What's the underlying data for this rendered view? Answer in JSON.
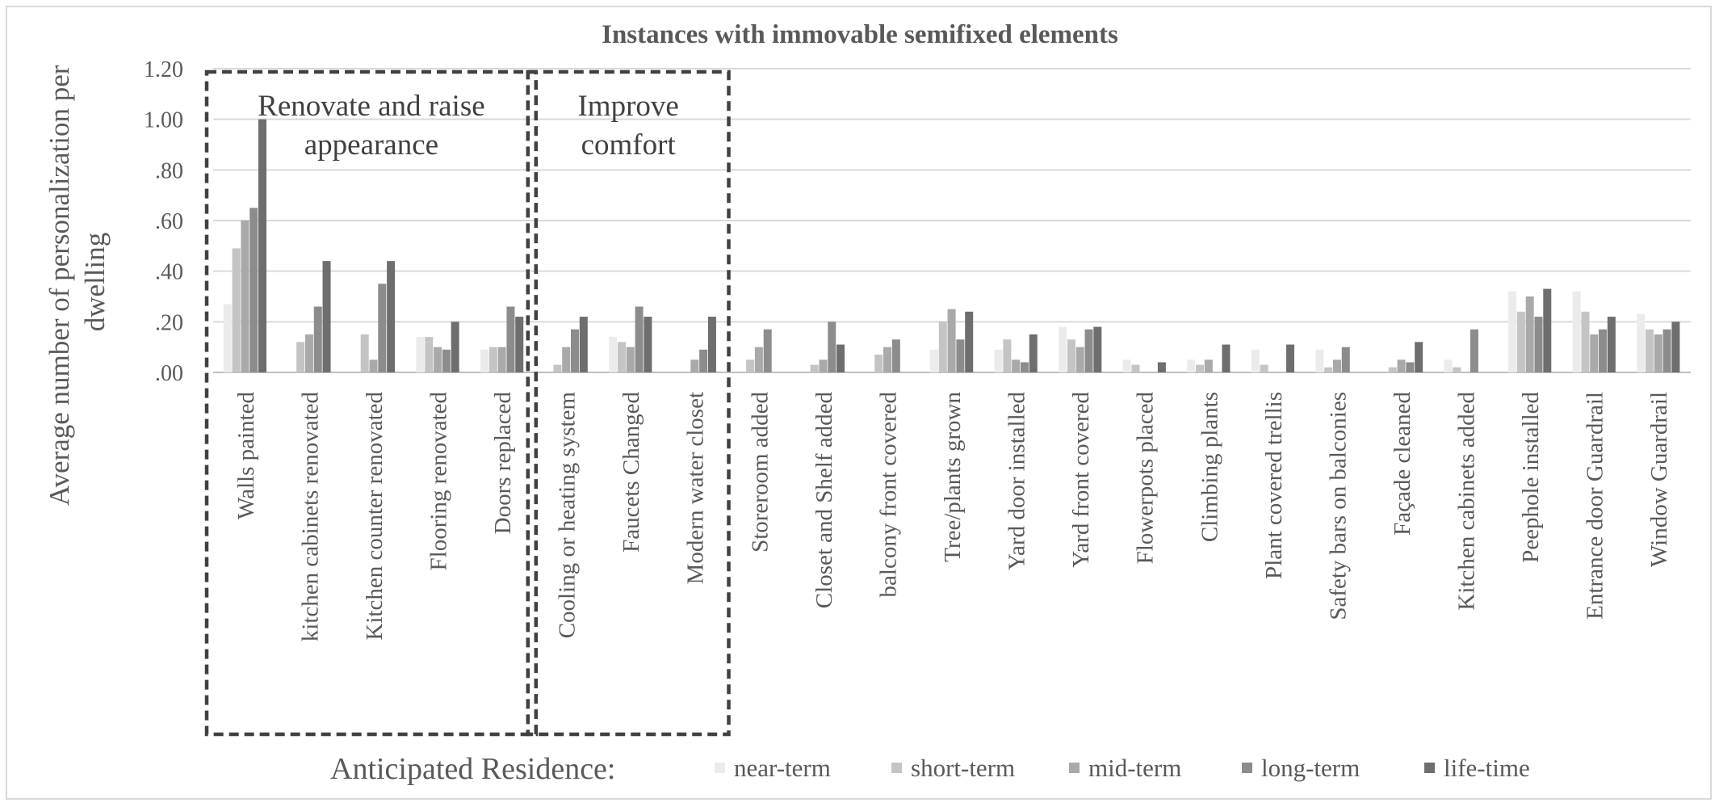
{
  "chart_data": {
    "type": "bar",
    "title": "Instances with immovable semifixed elements",
    "ylabel": "Average number of personalization per dwelling",
    "ylim": [
      0,
      1.2
    ],
    "yticks": [
      ".00",
      ".20",
      ".40",
      ".60",
      ".80",
      "1.00",
      "1.20"
    ],
    "grid": true,
    "categories": [
      "Walls painted",
      "kitchen cabinets renovated",
      "Kitchen counter renovated",
      "Flooring renovated",
      "Doors replaced",
      "Cooling or heating system",
      "Faucets Changed",
      "Modern water closet",
      "Storeroom added",
      "Closet and Shelf added",
      "balcony front covered",
      "Tree/plants grown",
      "Yard door installed",
      "Yard front covered",
      "Flowerpots placed",
      "Climbing plants",
      "Plant covered trellis",
      "Safety bars on balconies",
      "Façade cleaned",
      "Kitchen cabinets added",
      "Peephole installed",
      "Entrance door Guardrail",
      "Window Guardrail"
    ],
    "series": [
      {
        "name": "near-term",
        "color": "#ebebeb",
        "values": [
          0.27,
          0,
          0,
          0.14,
          0.09,
          0,
          0.14,
          0,
          0,
          0,
          0,
          0.09,
          0.09,
          0.18,
          0.05,
          0.05,
          0.09,
          0.09,
          0,
          0.05,
          0.32,
          0.32,
          0.23
        ]
      },
      {
        "name": "short-term",
        "color": "#c4c4c4",
        "values": [
          0.49,
          0.12,
          0.15,
          0.14,
          0.1,
          0.03,
          0.12,
          0,
          0.05,
          0.03,
          0.07,
          0.2,
          0.13,
          0.13,
          0.03,
          0.03,
          0.03,
          0.02,
          0.02,
          0.02,
          0.24,
          0.24,
          0.17
        ]
      },
      {
        "name": "mid-term",
        "color": "#a9a9a9",
        "values": [
          0.6,
          0.15,
          0.05,
          0.1,
          0.1,
          0.1,
          0.1,
          0.05,
          0.1,
          0.05,
          0.1,
          0.25,
          0.05,
          0.1,
          0,
          0.05,
          0,
          0.05,
          0.05,
          0,
          0.3,
          0.15,
          0.15
        ]
      },
      {
        "name": "long-term",
        "color": "#8c8c8c",
        "values": [
          0.65,
          0.26,
          0.35,
          0.09,
          0.26,
          0.17,
          0.26,
          0.09,
          0.17,
          0.2,
          0.13,
          0.13,
          0.04,
          0.17,
          0,
          0,
          0,
          0.1,
          0.04,
          0.17,
          0.22,
          0.17,
          0.17
        ]
      },
      {
        "name": "life-time",
        "color": "#6e6e6e",
        "values": [
          1.0,
          0.44,
          0.44,
          0.2,
          0.22,
          0.22,
          0.22,
          0.22,
          0,
          0.11,
          0,
          0.24,
          0.15,
          0.18,
          0.04,
          0.11,
          0.11,
          0,
          0.12,
          0,
          0.33,
          0.22,
          0.2
        ]
      }
    ],
    "annotations": [
      {
        "label_lines": [
          "Renovate and raise",
          "appearance"
        ],
        "from_category": 0,
        "to_category": 4
      },
      {
        "label_lines": [
          "Improve",
          "comfort"
        ],
        "from_category": 5,
        "to_category": 7
      }
    ],
    "legend": {
      "title": "Anticipated Residence:",
      "position": "bottom",
      "items": [
        "near-term",
        "short-term",
        "mid-term",
        "long-term",
        "life-time"
      ]
    }
  }
}
